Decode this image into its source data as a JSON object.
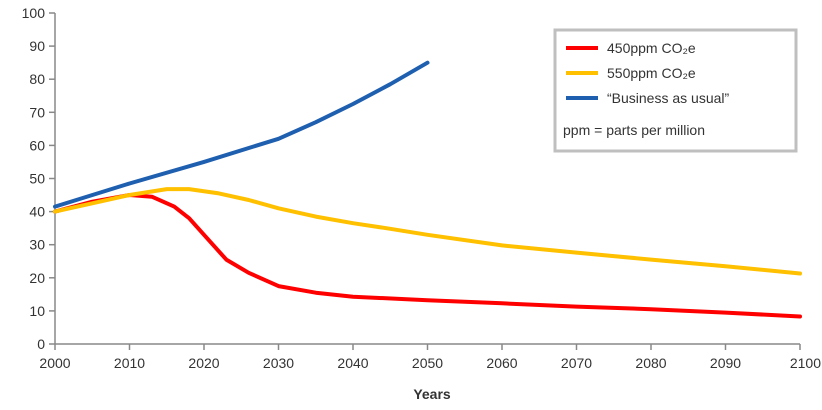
{
  "chart_data": {
    "type": "line",
    "title": "",
    "xlabel": "Years",
    "ylabel": "",
    "xlim": [
      2000,
      2100
    ],
    "ylim": [
      0,
      100
    ],
    "x_ticks": [
      "2000",
      "2010",
      "2020",
      "2030",
      "2040",
      "2050",
      "2060",
      "2070",
      "2080",
      "2090",
      "2100"
    ],
    "y_ticks": [
      "0",
      "10",
      "20",
      "30",
      "40",
      "50",
      "60",
      "70",
      "80",
      "90",
      "100"
    ],
    "grid": false,
    "legend_position": "top-right",
    "series": [
      {
        "name": "450ppm CO₂e",
        "color": "#ff0000",
        "points": [
          [
            2000,
            40
          ],
          [
            2005,
            43
          ],
          [
            2010,
            45
          ],
          [
            2013,
            44.5
          ],
          [
            2016,
            41.5
          ],
          [
            2018,
            38
          ],
          [
            2020,
            33
          ],
          [
            2023,
            25.5
          ],
          [
            2026,
            21.5
          ],
          [
            2030,
            17.5
          ],
          [
            2035,
            15.5
          ],
          [
            2040,
            14.3
          ],
          [
            2050,
            13.2
          ],
          [
            2060,
            12.3
          ],
          [
            2070,
            11.3
          ],
          [
            2080,
            10.5
          ],
          [
            2090,
            9.5
          ],
          [
            2100,
            8.3
          ]
        ]
      },
      {
        "name": "550ppm CO₂e",
        "color": "#ffc000",
        "points": [
          [
            2000,
            40
          ],
          [
            2005,
            42.5
          ],
          [
            2010,
            45
          ],
          [
            2015,
            46.8
          ],
          [
            2018,
            46.8
          ],
          [
            2022,
            45.5
          ],
          [
            2026,
            43.5
          ],
          [
            2030,
            41
          ],
          [
            2035,
            38.5
          ],
          [
            2040,
            36.5
          ],
          [
            2045,
            34.8
          ],
          [
            2050,
            33
          ],
          [
            2060,
            29.8
          ],
          [
            2070,
            27.6
          ],
          [
            2080,
            25.5
          ],
          [
            2090,
            23.5
          ],
          [
            2100,
            21.3
          ]
        ]
      },
      {
        "name": "“Business as usual”",
        "color": "#1f5fb0",
        "points": [
          [
            2000,
            41.5
          ],
          [
            2010,
            48.5
          ],
          [
            2020,
            55
          ],
          [
            2030,
            62
          ],
          [
            2035,
            67
          ],
          [
            2040,
            72.5
          ],
          [
            2045,
            78.5
          ],
          [
            2050,
            85
          ]
        ]
      }
    ],
    "legend_note": "ppm = parts per million"
  }
}
